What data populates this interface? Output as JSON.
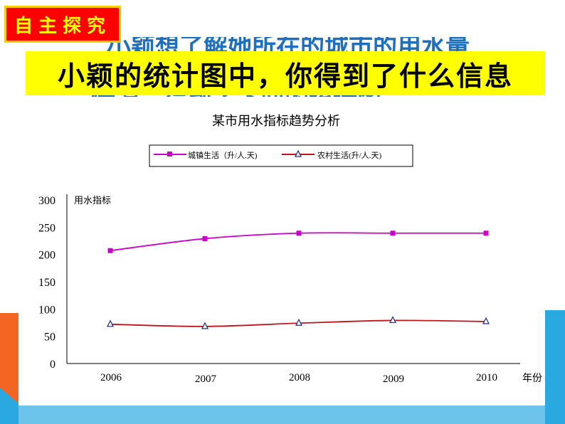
{
  "badge": {
    "label": "自主探究"
  },
  "background_text": {
    "line1": "小颖想了解她所在的城市的用水量",
    "line2": "情况，得到了下面的统计图。"
  },
  "banner": {
    "text": "小颖的统计图中，你得到了什么信息"
  },
  "chart_data": {
    "type": "line",
    "title": "某市用水指标趋势分析",
    "ylabel": "用水指标",
    "xlabel": "年份",
    "categories": [
      "2006",
      "2007",
      "2008",
      "2009",
      "2010"
    ],
    "yticks": [
      "0",
      "50",
      "100",
      "150",
      "200",
      "250",
      "300"
    ],
    "ylim": [
      0,
      300
    ],
    "grid": false,
    "legend_position": "top",
    "series": [
      {
        "name": "城镇生活（升/人.天)",
        "marker": "square",
        "color": "#cc00cc",
        "values": [
          207,
          229,
          239,
          239,
          239
        ]
      },
      {
        "name": "农村生活(升/人.天)",
        "marker": "triangle",
        "color": "#c0141c",
        "values": [
          72,
          68,
          74,
          79,
          77
        ]
      }
    ]
  },
  "colors": {
    "badge_bg": "#ff0000",
    "badge_text": "#ffff00",
    "banner_bg": "#ffff00",
    "background_text": "#1f6fbf",
    "accent_orange": "#f26522",
    "accent_blue": "#29a9e0"
  }
}
